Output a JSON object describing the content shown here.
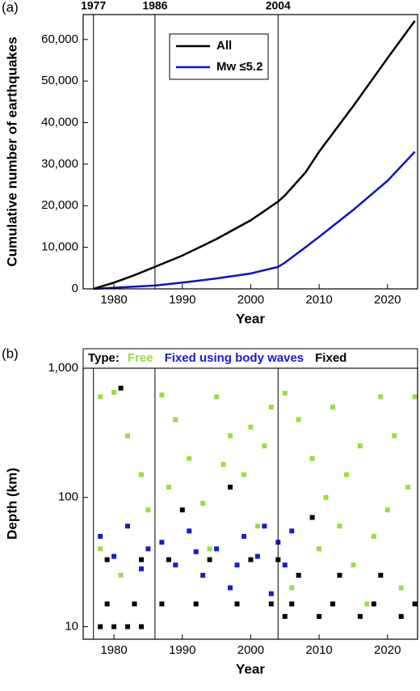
{
  "chart_data": [
    {
      "type": "line",
      "panel": "(a)",
      "x_label": "Year",
      "y_label": "Cumulative number of earthquakes",
      "xlim": [
        1975.5,
        2024.4
      ],
      "ylim": [
        0,
        66000
      ],
      "xticks": [
        1980,
        1990,
        2000,
        2010,
        2020
      ],
      "yticks": [
        0,
        {
          "value": 10000,
          "label": "10,000"
        },
        {
          "value": 20000,
          "label": "20,000"
        },
        {
          "value": 30000,
          "label": "30,000"
        },
        {
          "value": 40000,
          "label": "40,000"
        },
        {
          "value": 50000,
          "label": "50,000"
        },
        {
          "value": 60000,
          "label": "60,000"
        }
      ],
      "vlines": [
        1977,
        1986,
        2004
      ],
      "series": [
        {
          "name": "All",
          "color": "#000000",
          "x": [
            1977,
            1980,
            1983,
            1986,
            1990,
            1995,
            2000,
            2004,
            2005,
            2008,
            2010,
            2015,
            2020,
            2024
          ],
          "values": [
            0,
            1500,
            3300,
            5300,
            8000,
            12000,
            16500,
            21000,
            22500,
            28000,
            33000,
            44000,
            55500,
            64500
          ]
        },
        {
          "name": "Mw ≤5.2",
          "color": "#1010c8",
          "x": [
            1977,
            1986,
            1990,
            1995,
            2000,
            2004,
            2005,
            2008,
            2010,
            2015,
            2020,
            2024
          ],
          "values": [
            0,
            800,
            1500,
            2500,
            3700,
            5300,
            6300,
            10000,
            12500,
            19000,
            26000,
            33000
          ]
        }
      ]
    },
    {
      "type": "scatter",
      "panel": "(b)",
      "x_label": "Year",
      "y_label": "Depth (km)",
      "legend_title": "Type:",
      "log_y": true,
      "xlim": [
        1975.5,
        2024.4
      ],
      "ylim": [
        8,
        1000
      ],
      "xticks": [
        1980,
        1990,
        2000,
        2010,
        2020
      ],
      "yticks": [
        10,
        100,
        {
          "value": 1000,
          "label": "1,000"
        }
      ],
      "vlines": [
        1977,
        1986,
        2004
      ],
      "series": [
        {
          "name": "Free",
          "color": "#99dd44",
          "x": [
            1978,
            1980,
            1982,
            1984,
            1985,
            1978,
            1987,
            1989,
            1991,
            1993,
            1995,
            1997,
            1999,
            2001,
            2003,
            2002,
            2005,
            2007,
            2009,
            2011,
            2013,
            2015,
            2017,
            2019,
            2021,
            2023,
            2006,
            2010,
            2014,
            2018,
            2022,
            1988,
            1994,
            2000,
            1981,
            1996,
            2012,
            2016,
            2020,
            2024
          ],
          "values": [
            600,
            650,
            300,
            150,
            80,
            40,
            620,
            400,
            200,
            90,
            600,
            300,
            150,
            60,
            500,
            250,
            640,
            400,
            200,
            100,
            60,
            30,
            15,
            600,
            300,
            120,
            20,
            40,
            150,
            50,
            20,
            120,
            40,
            350,
            25,
            180,
            500,
            250,
            80,
            600
          ]
        },
        {
          "name": "Fixed using body waves",
          "color": "#1a1ad0",
          "x": [
            1978,
            1980,
            1982,
            1984,
            1987,
            1989,
            1991,
            1993,
            1995,
            1997,
            1999,
            2001,
            2002,
            2003,
            2004,
            2005,
            2006,
            1985,
            1992,
            1998
          ],
          "values": [
            50,
            35,
            60,
            28,
            45,
            30,
            55,
            25,
            40,
            20,
            50,
            35,
            60,
            18,
            45,
            30,
            55,
            40,
            38,
            30
          ]
        },
        {
          "name": "Fixed",
          "color": "#000000",
          "x": [
            1978,
            1980,
            1982,
            1984,
            1979,
            1983,
            1987,
            1992,
            1998,
            2003,
            1979,
            1984,
            1988,
            1994,
            2000,
            2004,
            2005,
            2010,
            2016,
            2022,
            2006,
            2012,
            2018,
            2024,
            2007,
            2013,
            2019,
            1981,
            1990,
            2009,
            1997
          ],
          "values": [
            10,
            10,
            10,
            10,
            15,
            15,
            15,
            15,
            15,
            15,
            33,
            33,
            33,
            33,
            33,
            33,
            12,
            12,
            12,
            12,
            15,
            15,
            15,
            15,
            25,
            25,
            25,
            700,
            80,
            70,
            120
          ]
        }
      ]
    }
  ]
}
